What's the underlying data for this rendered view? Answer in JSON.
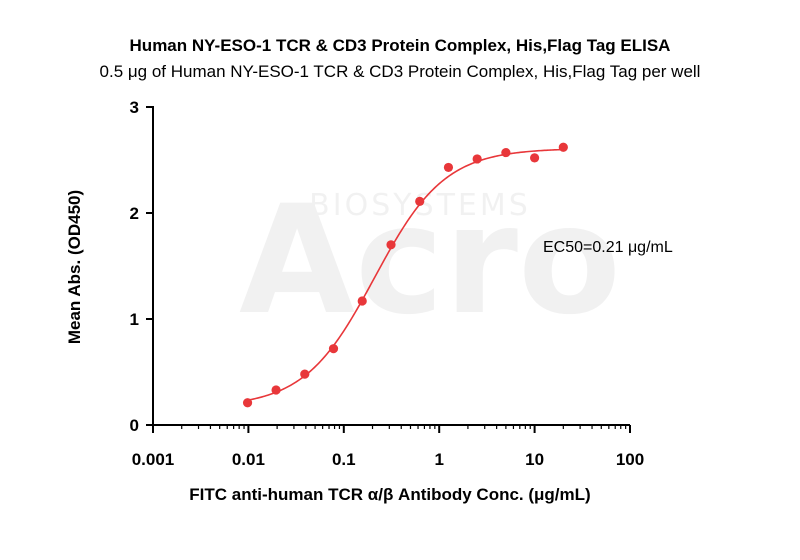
{
  "chart_data": {
    "type": "scatter",
    "title": "Human NY-ESO-1 TCR & CD3 Protein Complex, His,Flag Tag ELISA",
    "subtitle": "0.5 μg of Human NY-ESO-1 TCR & CD3 Protein Complex, His,Flag Tag per well",
    "xlabel": "FITC anti-human TCR α/β Antibody Conc. (μg/mL)",
    "ylabel": "Mean Abs. (OD450)",
    "x_scale": "log",
    "xlim": [
      0.001,
      100
    ],
    "ylim": [
      0,
      3
    ],
    "x_ticks": [
      "0.001",
      "0.01",
      "0.1",
      "1",
      "10",
      "100"
    ],
    "y_ticks": [
      "0",
      "1",
      "2",
      "3"
    ],
    "annotation": "EC50=0.21 μg/mL",
    "watermark": "Acro BIOSYSTEMS",
    "colors": {
      "series": "#e8373a",
      "axis": "#000000"
    },
    "grid": false,
    "series": [
      {
        "x": [
          0.0098,
          0.0195,
          0.039,
          0.078,
          0.156,
          0.3125,
          0.625,
          1.25,
          2.5,
          5,
          10,
          20
        ],
        "y": [
          0.21,
          0.33,
          0.48,
          0.72,
          1.17,
          1.7,
          2.11,
          2.43,
          2.51,
          2.57,
          2.52,
          2.62
        ]
      }
    ],
    "fit": {
      "model": "4PL",
      "bottom": 0.17,
      "top": 2.61,
      "ec50": 0.21,
      "hill": 1.18
    }
  }
}
